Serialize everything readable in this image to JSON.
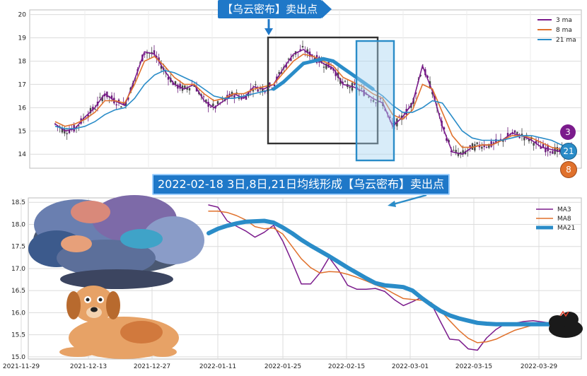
{
  "chart_data": [
    {
      "type": "candlestick+line",
      "ylim": [
        13.4,
        20.2
      ],
      "yticks": [
        "14",
        "15",
        "16",
        "17",
        "18",
        "19",
        "20"
      ],
      "legend": {
        "position": "top-right",
        "entries": [
          "3 ma",
          "8 ma",
          "21 ma"
        ]
      },
      "grid": true,
      "series": [
        {
          "name": "3 ma",
          "color": "#7b1b8c",
          "values": [
            15.3,
            15.0,
            15.1,
            15.6,
            16.0,
            16.6,
            16.3,
            16.1,
            17.2,
            18.4,
            18.3,
            17.6,
            17.0,
            16.8,
            17.0,
            16.3,
            16.0,
            16.3,
            16.6,
            16.4,
            16.9,
            16.8,
            17.0,
            17.7,
            18.3,
            18.5,
            18.2,
            17.9,
            17.7,
            17.0,
            16.9,
            16.7,
            16.4,
            16.2,
            15.2,
            15.6,
            16.2,
            17.8,
            16.7,
            15.2,
            14.1,
            14.0,
            14.3,
            14.4,
            14.4,
            14.6,
            14.9,
            14.8,
            14.6,
            14.3,
            14.2,
            14.1,
            14.2
          ]
        },
        {
          "name": "8 ma",
          "color": "#e0712c",
          "values": [
            15.4,
            15.2,
            15.3,
            15.5,
            15.8,
            16.3,
            16.3,
            16.2,
            17.0,
            18.0,
            18.2,
            17.8,
            17.3,
            17.0,
            17.0,
            16.6,
            16.3,
            16.4,
            16.6,
            16.6,
            16.8,
            16.9,
            17.0,
            17.5,
            18.0,
            18.3,
            18.2,
            18.0,
            17.8,
            17.3,
            17.1,
            16.9,
            16.6,
            16.4,
            15.7,
            15.5,
            15.9,
            17.0,
            16.8,
            15.8,
            14.8,
            14.3,
            14.3,
            14.4,
            14.4,
            14.6,
            14.8,
            14.8,
            14.7,
            14.5,
            14.3,
            14.2,
            14.2
          ]
        },
        {
          "name": "21 ma",
          "color": "#2a8cc8",
          "values": [
            15.2,
            15.1,
            15.1,
            15.2,
            15.4,
            15.7,
            15.9,
            16.0,
            16.4,
            17.0,
            17.4,
            17.6,
            17.5,
            17.3,
            17.1,
            16.8,
            16.5,
            16.4,
            16.4,
            16.5,
            16.6,
            16.7,
            16.8,
            17.1,
            17.5,
            17.9,
            18.0,
            18.1,
            18.0,
            17.7,
            17.4,
            17.1,
            16.8,
            16.5,
            16.1,
            15.8,
            15.8,
            16.0,
            16.3,
            16.2,
            15.6,
            15.0,
            14.7,
            14.6,
            14.6,
            14.6,
            14.7,
            14.8,
            14.8,
            14.7,
            14.6,
            14.4,
            14.3
          ]
        }
      ],
      "annotation": "【乌云密布】卖出点",
      "badges": [
        "3",
        "21",
        "8"
      ]
    },
    {
      "type": "line",
      "ylim": [
        14.95,
        18.6
      ],
      "yticks": [
        "15.0",
        "15.5",
        "16.0",
        "16.5",
        "17.0",
        "17.5",
        "18.0",
        "18.5"
      ],
      "x_ticks": [
        "2021-11-29",
        "2021-12-13",
        "2021-12-27",
        "2022-01-11",
        "2022-01-25",
        "2022-02-15",
        "2022-03-01",
        "2022-03-15",
        "2022-03-29"
      ],
      "legend": {
        "position": "top-right",
        "entries": [
          "MA3",
          "MA8",
          "MA21"
        ]
      },
      "grid": true,
      "series": [
        {
          "name": "MA3",
          "color": "#7b1b8c",
          "values": [
            18.44,
            18.39,
            18.08,
            17.96,
            17.85,
            17.71,
            17.82,
            17.98,
            17.62,
            17.15,
            16.65,
            16.65,
            16.9,
            17.25,
            16.97,
            16.62,
            16.53,
            16.53,
            16.55,
            16.48,
            16.3,
            16.16,
            16.25,
            16.35,
            16.21,
            15.8,
            15.4,
            15.38,
            15.18,
            15.15,
            15.43,
            15.62,
            15.75,
            15.76,
            15.8,
            15.82,
            15.79,
            15.76
          ]
        },
        {
          "name": "MA8",
          "color": "#e0712c",
          "values": [
            18.3,
            18.3,
            18.27,
            18.2,
            18.1,
            17.95,
            17.9,
            17.92,
            17.78,
            17.5,
            17.22,
            17.02,
            16.9,
            16.93,
            16.92,
            16.87,
            16.8,
            16.72,
            16.63,
            16.55,
            16.43,
            16.32,
            16.3,
            16.28,
            16.23,
            16.05,
            15.82,
            15.6,
            15.42,
            15.32,
            15.34,
            15.4,
            15.5,
            15.6,
            15.66,
            15.72,
            15.76,
            15.78
          ]
        },
        {
          "name": "MA21",
          "color": "#2a8cc8",
          "values": [
            17.8,
            17.9,
            17.97,
            18.02,
            18.06,
            18.07,
            18.08,
            18.04,
            17.93,
            17.8,
            17.65,
            17.52,
            17.4,
            17.28,
            17.15,
            17.02,
            16.9,
            16.78,
            16.67,
            16.62,
            16.6,
            16.58,
            16.5,
            16.33,
            16.18,
            16.04,
            15.94,
            15.87,
            15.82,
            15.77,
            15.75,
            15.74,
            15.74,
            15.74,
            15.74,
            15.74,
            15.74,
            15.74
          ]
        }
      ],
      "annotation": "2022-02-18 3日,8日,21日均线形成【乌云密布】卖出点"
    }
  ]
}
